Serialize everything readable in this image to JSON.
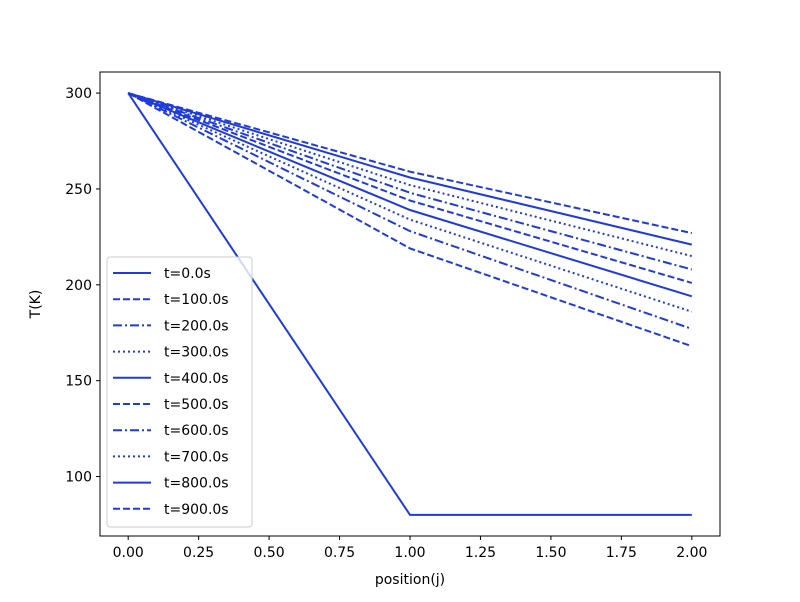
{
  "chart_data": {
    "type": "line",
    "title": "",
    "xlabel": "position(j)",
    "ylabel": "T(K)",
    "xlim": [
      -0.1,
      2.1
    ],
    "ylim": [
      69,
      311
    ],
    "xticks": [
      0.0,
      0.25,
      0.5,
      0.75,
      1.0,
      1.25,
      1.5,
      1.75,
      2.0
    ],
    "xtick_labels": [
      "0.00",
      "0.25",
      "0.50",
      "0.75",
      "1.00",
      "1.25",
      "1.50",
      "1.75",
      "2.00"
    ],
    "yticks": [
      100,
      150,
      200,
      250,
      300
    ],
    "ytick_labels": [
      "100",
      "150",
      "200",
      "250",
      "300"
    ],
    "grid": false,
    "legend_position": "lower-left",
    "color": "#1f3bdc",
    "x": [
      0.0,
      1.0,
      2.0
    ],
    "series": [
      {
        "name": "t=0.0s",
        "style": "solid",
        "values": [
          300,
          80,
          80
        ]
      },
      {
        "name": "t=100.0s",
        "style": "dashed",
        "values": [
          300,
          219,
          168
        ]
      },
      {
        "name": "t=200.0s",
        "style": "dashdot",
        "values": [
          300,
          228,
          177
        ]
      },
      {
        "name": "t=300.0s",
        "style": "dotted",
        "values": [
          300,
          234,
          186
        ]
      },
      {
        "name": "t=400.0s",
        "style": "solid",
        "values": [
          300,
          239,
          194
        ]
      },
      {
        "name": "t=500.0s",
        "style": "dashed",
        "values": [
          300,
          244,
          201
        ]
      },
      {
        "name": "t=600.0s",
        "style": "dashdot",
        "values": [
          300,
          248,
          208
        ]
      },
      {
        "name": "t=700.0s",
        "style": "dotted",
        "values": [
          300,
          252,
          215
        ]
      },
      {
        "name": "t=800.0s",
        "style": "solid",
        "values": [
          300,
          256,
          221
        ]
      },
      {
        "name": "t=900.0s",
        "style": "dashed",
        "values": [
          300,
          259,
          227
        ]
      }
    ]
  }
}
